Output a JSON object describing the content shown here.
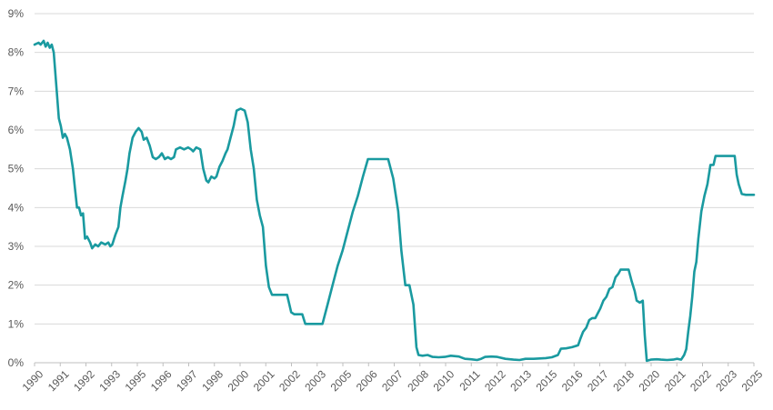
{
  "chart_data": {
    "type": "line",
    "title": "",
    "xlabel": "",
    "ylabel": "",
    "x_range": [
      1990,
      2025.6
    ],
    "ylim": [
      0,
      9
    ],
    "y_ticks": [
      0,
      1,
      2,
      3,
      4,
      5,
      6,
      7,
      8,
      9
    ],
    "y_tick_labels": [
      "0%",
      "1%",
      "2%",
      "3%",
      "4%",
      "5%",
      "6%",
      "7%",
      "8%",
      "9%"
    ],
    "x_tick_labels": [
      "1990",
      "1991",
      "1992",
      "1993",
      "1995",
      "1996",
      "1997",
      "1998",
      "2000",
      "2001",
      "2002",
      "2003",
      "2005",
      "2006",
      "2007",
      "2008",
      "2010",
      "2011",
      "2012",
      "2013",
      "2015",
      "2016",
      "2017",
      "2018",
      "2020",
      "2021",
      "2022",
      "2023",
      "2025"
    ],
    "grid": "horizontal",
    "legend": "none",
    "color": "#1a9aa0",
    "series": [
      {
        "points": [
          [
            1990.0,
            8.2
          ],
          [
            1990.2,
            8.25
          ],
          [
            1990.3,
            8.2
          ],
          [
            1990.45,
            8.3
          ],
          [
            1990.55,
            8.15
          ],
          [
            1990.65,
            8.25
          ],
          [
            1990.75,
            8.12
          ],
          [
            1990.85,
            8.2
          ],
          [
            1990.95,
            8.0
          ],
          [
            1991.1,
            7.0
          ],
          [
            1991.2,
            6.3
          ],
          [
            1991.3,
            6.1
          ],
          [
            1991.4,
            5.8
          ],
          [
            1991.5,
            5.9
          ],
          [
            1991.6,
            5.8
          ],
          [
            1991.75,
            5.5
          ],
          [
            1991.9,
            5.0
          ],
          [
            1992.0,
            4.5
          ],
          [
            1992.1,
            4.0
          ],
          [
            1992.2,
            4.0
          ],
          [
            1992.3,
            3.8
          ],
          [
            1992.4,
            3.85
          ],
          [
            1992.5,
            3.2
          ],
          [
            1992.6,
            3.25
          ],
          [
            1992.75,
            3.1
          ],
          [
            1992.85,
            2.95
          ],
          [
            1993.0,
            3.05
          ],
          [
            1993.15,
            3.0
          ],
          [
            1993.3,
            3.1
          ],
          [
            1993.5,
            3.05
          ],
          [
            1993.65,
            3.1
          ],
          [
            1993.75,
            3.0
          ],
          [
            1993.85,
            3.05
          ],
          [
            1994.0,
            3.3
          ],
          [
            1994.15,
            3.5
          ],
          [
            1994.25,
            4.0
          ],
          [
            1994.35,
            4.3
          ],
          [
            1994.5,
            4.7
          ],
          [
            1994.6,
            5.0
          ],
          [
            1994.7,
            5.4
          ],
          [
            1994.85,
            5.8
          ],
          [
            1995.0,
            5.95
          ],
          [
            1995.15,
            6.05
          ],
          [
            1995.3,
            5.95
          ],
          [
            1995.4,
            5.75
          ],
          [
            1995.55,
            5.8
          ],
          [
            1995.7,
            5.6
          ],
          [
            1995.85,
            5.3
          ],
          [
            1996.0,
            5.25
          ],
          [
            1996.15,
            5.3
          ],
          [
            1996.3,
            5.4
          ],
          [
            1996.45,
            5.25
          ],
          [
            1996.6,
            5.3
          ],
          [
            1996.75,
            5.25
          ],
          [
            1996.9,
            5.3
          ],
          [
            1997.0,
            5.5
          ],
          [
            1997.2,
            5.55
          ],
          [
            1997.4,
            5.5
          ],
          [
            1997.6,
            5.55
          ],
          [
            1997.75,
            5.5
          ],
          [
            1997.85,
            5.45
          ],
          [
            1998.0,
            5.55
          ],
          [
            1998.2,
            5.5
          ],
          [
            1998.35,
            5.0
          ],
          [
            1998.5,
            4.7
          ],
          [
            1998.6,
            4.65
          ],
          [
            1998.75,
            4.8
          ],
          [
            1998.9,
            4.75
          ],
          [
            1999.0,
            4.8
          ],
          [
            1999.15,
            5.05
          ],
          [
            1999.3,
            5.2
          ],
          [
            1999.45,
            5.4
          ],
          [
            1999.55,
            5.5
          ],
          [
            1999.7,
            5.8
          ],
          [
            1999.85,
            6.1
          ],
          [
            2000.0,
            6.5
          ],
          [
            2000.2,
            6.55
          ],
          [
            2000.4,
            6.5
          ],
          [
            2000.55,
            6.2
          ],
          [
            2000.7,
            5.5
          ],
          [
            2000.85,
            5.0
          ],
          [
            2001.0,
            4.2
          ],
          [
            2001.15,
            3.8
          ],
          [
            2001.3,
            3.5
          ],
          [
            2001.45,
            2.5
          ],
          [
            2001.6,
            1.95
          ],
          [
            2001.75,
            1.75
          ],
          [
            2002.0,
            1.75
          ],
          [
            2002.3,
            1.75
          ],
          [
            2002.5,
            1.75
          ],
          [
            2002.7,
            1.3
          ],
          [
            2002.85,
            1.25
          ],
          [
            2003.1,
            1.25
          ],
          [
            2003.25,
            1.25
          ],
          [
            2003.4,
            1.0
          ],
          [
            2003.6,
            1.0
          ],
          [
            2003.8,
            1.0
          ],
          [
            2004.0,
            1.0
          ],
          [
            2004.25,
            1.0
          ],
          [
            2004.5,
            1.5
          ],
          [
            2004.75,
            2.0
          ],
          [
            2005.0,
            2.5
          ],
          [
            2005.25,
            2.9
          ],
          [
            2005.5,
            3.4
          ],
          [
            2005.75,
            3.9
          ],
          [
            2006.0,
            4.3
          ],
          [
            2006.25,
            4.8
          ],
          [
            2006.5,
            5.25
          ],
          [
            2006.75,
            5.25
          ],
          [
            2007.0,
            5.25
          ],
          [
            2007.25,
            5.25
          ],
          [
            2007.5,
            5.25
          ],
          [
            2007.75,
            4.75
          ],
          [
            2008.0,
            3.9
          ],
          [
            2008.15,
            2.9
          ],
          [
            2008.35,
            2.0
          ],
          [
            2008.55,
            2.0
          ],
          [
            2008.75,
            1.5
          ],
          [
            2008.9,
            0.4
          ],
          [
            2009.0,
            0.2
          ],
          [
            2009.2,
            0.18
          ],
          [
            2009.45,
            0.2
          ],
          [
            2009.7,
            0.15
          ],
          [
            2010.0,
            0.14
          ],
          [
            2010.3,
            0.15
          ],
          [
            2010.6,
            0.18
          ],
          [
            2011.0,
            0.16
          ],
          [
            2011.3,
            0.1
          ],
          [
            2011.6,
            0.09
          ],
          [
            2011.9,
            0.07
          ],
          [
            2012.1,
            0.1
          ],
          [
            2012.3,
            0.15
          ],
          [
            2012.6,
            0.16
          ],
          [
            2012.9,
            0.15
          ],
          [
            2013.3,
            0.1
          ],
          [
            2013.7,
            0.08
          ],
          [
            2014.0,
            0.07
          ],
          [
            2014.3,
            0.1
          ],
          [
            2014.7,
            0.1
          ],
          [
            2015.0,
            0.11
          ],
          [
            2015.3,
            0.12
          ],
          [
            2015.6,
            0.14
          ],
          [
            2015.9,
            0.2
          ],
          [
            2016.05,
            0.36
          ],
          [
            2016.3,
            0.37
          ],
          [
            2016.6,
            0.4
          ],
          [
            2016.9,
            0.45
          ],
          [
            2017.0,
            0.6
          ],
          [
            2017.15,
            0.8
          ],
          [
            2017.3,
            0.9
          ],
          [
            2017.45,
            1.1
          ],
          [
            2017.6,
            1.15
          ],
          [
            2017.75,
            1.15
          ],
          [
            2017.9,
            1.3
          ],
          [
            2018.0,
            1.4
          ],
          [
            2018.15,
            1.6
          ],
          [
            2018.3,
            1.7
          ],
          [
            2018.45,
            1.9
          ],
          [
            2018.6,
            1.95
          ],
          [
            2018.75,
            2.2
          ],
          [
            2018.9,
            2.3
          ],
          [
            2019.0,
            2.4
          ],
          [
            2019.2,
            2.4
          ],
          [
            2019.4,
            2.4
          ],
          [
            2019.55,
            2.1
          ],
          [
            2019.7,
            1.85
          ],
          [
            2019.8,
            1.6
          ],
          [
            2019.95,
            1.55
          ],
          [
            2020.1,
            1.6
          ],
          [
            2020.2,
            0.7
          ],
          [
            2020.3,
            0.05
          ],
          [
            2020.5,
            0.08
          ],
          [
            2020.8,
            0.09
          ],
          [
            2021.0,
            0.08
          ],
          [
            2021.3,
            0.07
          ],
          [
            2021.6,
            0.08
          ],
          [
            2021.8,
            0.1
          ],
          [
            2022.0,
            0.08
          ],
          [
            2022.15,
            0.2
          ],
          [
            2022.25,
            0.35
          ],
          [
            2022.35,
            0.8
          ],
          [
            2022.45,
            1.2
          ],
          [
            2022.55,
            1.7
          ],
          [
            2022.65,
            2.35
          ],
          [
            2022.75,
            2.6
          ],
          [
            2022.85,
            3.2
          ],
          [
            2023.0,
            3.9
          ],
          [
            2023.15,
            4.3
          ],
          [
            2023.3,
            4.6
          ],
          [
            2023.45,
            5.1
          ],
          [
            2023.6,
            5.1
          ],
          [
            2023.7,
            5.33
          ],
          [
            2024.0,
            5.33
          ],
          [
            2024.3,
            5.33
          ],
          [
            2024.5,
            5.33
          ],
          [
            2024.65,
            5.33
          ],
          [
            2024.75,
            4.85
          ],
          [
            2024.85,
            4.6
          ],
          [
            2025.0,
            4.35
          ],
          [
            2025.2,
            4.33
          ],
          [
            2025.45,
            4.33
          ],
          [
            2025.6,
            4.33
          ]
        ]
      }
    ]
  }
}
